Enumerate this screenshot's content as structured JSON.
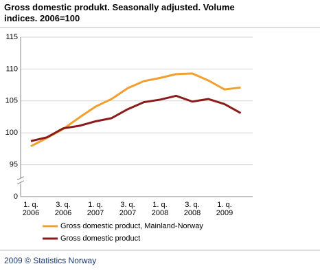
{
  "chart_data": {
    "type": "line",
    "title": "Gross domestic produkt. Seasonally adjusted. Volume indices. 2006=100",
    "categories": [
      "1. q. 2006",
      null,
      "3. q. 2006",
      null,
      "1. q. 2007",
      null,
      "3. q. 2007",
      null,
      "1. q. 2008",
      null,
      "3. q. 2008",
      null,
      "1. q. 2009",
      null
    ],
    "series": [
      {
        "name": "Gross domestic product, Mainland-Norway",
        "color": "#f0a030",
        "values": [
          97.9,
          99.2,
          100.6,
          102.4,
          104.1,
          105.3,
          107.0,
          108.1,
          108.6,
          109.2,
          109.3,
          108.2,
          106.8,
          107.1
        ]
      },
      {
        "name": "Gross domestic product",
        "color": "#8b1a1a",
        "values": [
          98.7,
          99.3,
          100.7,
          101.1,
          101.8,
          102.3,
          103.7,
          104.8,
          105.2,
          105.8,
          104.9,
          105.3,
          104.5,
          103.1
        ]
      }
    ],
    "ylim": [
      0,
      115
    ],
    "yticks": [
      0,
      95,
      100,
      105,
      110,
      115
    ],
    "axis_break": [
      0,
      95
    ],
    "grid": true,
    "legend": "bottom",
    "source": "2009 © Statistics Norway"
  }
}
